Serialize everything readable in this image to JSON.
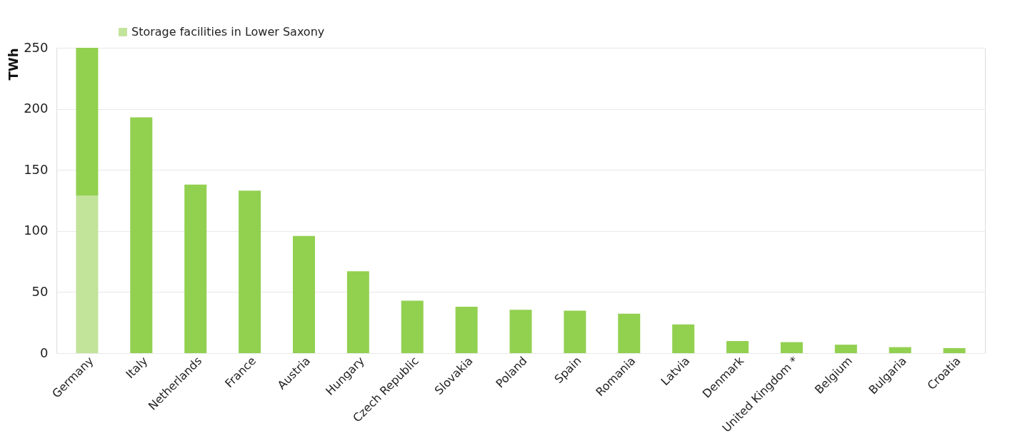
{
  "chart_data": {
    "type": "bar",
    "stacked": true,
    "ylabel": "TWh",
    "categories": [
      "Germany",
      "Italy",
      "Netherlands",
      "France",
      "Austria",
      "Hungary",
      "Czech Republic",
      "Slovakia",
      "Poland",
      "Spain",
      "Romania",
      "Latvia",
      "Denmark",
      "United Kingdom *",
      "Belgium",
      "Bulgaria",
      "Croatia"
    ],
    "series": [
      {
        "name": "Storage facilities in Lower Saxony",
        "color": "#c2e39a",
        "values": [
          129,
          null,
          null,
          null,
          null,
          null,
          null,
          null,
          null,
          null,
          null,
          null,
          null,
          null,
          null,
          null,
          null
        ]
      },
      {
        "color": "#92d050",
        "values": [
          121,
          193,
          138,
          133,
          96,
          67,
          43,
          38,
          35.5,
          34.7,
          32.3,
          23.5,
          9.9,
          9,
          6.9,
          4.9,
          4.1
        ]
      }
    ],
    "ylim": [
      0,
      250
    ],
    "yticks": [
      0,
      50,
      100,
      150,
      200,
      250
    ],
    "grid": "y",
    "legend": "top left"
  }
}
